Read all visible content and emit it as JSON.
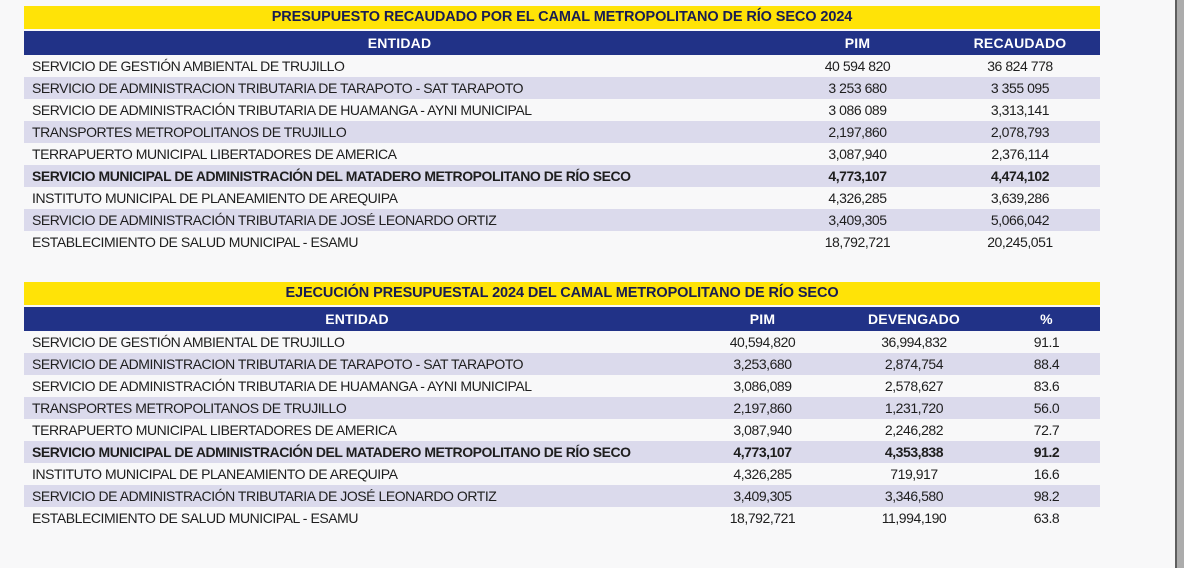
{
  "colors": {
    "title_bg": "#FFE307",
    "title_text": "#181C52",
    "header_bg": "#213287",
    "header_text": "#FFFFFF",
    "row_alt_bg": "#DBDAEC",
    "row_text": "#1E1E1E"
  },
  "tables": [
    {
      "title": "PRESUPUESTO RECAUDADO POR EL CAMAL METROPOLITANO DE RÍO SECO 2024",
      "columns": [
        "ENTIDAD",
        "PIM",
        "RECAUDADO"
      ],
      "rows": [
        {
          "cells": [
            "SERVICIO DE GESTIÓN AMBIENTAL DE TRUJILLO",
            "40 594 820",
            "36 824 778"
          ],
          "bold": false
        },
        {
          "cells": [
            "SERVICIO DE ADMINISTRACION TRIBUTARIA DE TARAPOTO - SAT TARAPOTO",
            "3 253 680",
            "3 355 095"
          ],
          "bold": false
        },
        {
          "cells": [
            "SERVICIO DE ADMINISTRACIÓN TRIBUTARIA DE HUAMANGA - AYNI MUNICIPAL",
            "3 086 089",
            "3,313,141"
          ],
          "bold": false
        },
        {
          "cells": [
            "TRANSPORTES METROPOLITANOS DE TRUJILLO",
            "2,197,860",
            "2,078,793"
          ],
          "bold": false
        },
        {
          "cells": [
            "TERRAPUERTO MUNICIPAL LIBERTADORES DE AMERICA",
            "3,087,940",
            "2,376,114"
          ],
          "bold": false
        },
        {
          "cells": [
            "SERVICIO MUNICIPAL DE ADMINISTRACIÓN DEL MATADERO METROPOLITANO DE RÍO SECO",
            "4,773,107",
            "4,474,102"
          ],
          "bold": true
        },
        {
          "cells": [
            "INSTITUTO MUNICIPAL DE PLANEAMIENTO DE AREQUIPA",
            "4,326,285",
            "3,639,286"
          ],
          "bold": false
        },
        {
          "cells": [
            "SERVICIO DE ADMINISTRACIÓN TRIBUTARIA DE JOSÉ LEONARDO ORTIZ",
            "3,409,305",
            "5,066,042"
          ],
          "bold": false
        },
        {
          "cells": [
            "ESTABLECIMIENTO DE SALUD MUNICIPAL - ESAMU",
            "18,792,721",
            "20,245,051"
          ],
          "bold": false
        }
      ]
    },
    {
      "title": "EJECUCIÓN PRESUPUESTAL 2024 DEL CAMAL METROPOLITANO DE RÍO SECO",
      "columns": [
        "ENTIDAD",
        "PIM",
        "DEVENGADO",
        "%"
      ],
      "rows": [
        {
          "cells": [
            "SERVICIO DE GESTIÓN AMBIENTAL DE TRUJILLO",
            "40,594,820",
            "36,994,832",
            "91.1"
          ],
          "bold": false
        },
        {
          "cells": [
            "SERVICIO DE ADMINISTRACION TRIBUTARIA DE TARAPOTO - SAT TARAPOTO",
            "3,253,680",
            "2,874,754",
            "88.4"
          ],
          "bold": false
        },
        {
          "cells": [
            "SERVICIO DE ADMINISTRACIÓN TRIBUTARIA DE HUAMANGA - AYNI MUNICIPAL",
            "3,086,089",
            "2,578,627",
            "83.6"
          ],
          "bold": false
        },
        {
          "cells": [
            "TRANSPORTES METROPOLITANOS DE TRUJILLO",
            "2,197,860",
            "1,231,720",
            "56.0"
          ],
          "bold": false
        },
        {
          "cells": [
            "TERRAPUERTO MUNICIPAL LIBERTADORES DE AMERICA",
            "3,087,940",
            "2,246,282",
            "72.7"
          ],
          "bold": false
        },
        {
          "cells": [
            "SERVICIO MUNICIPAL DE ADMINISTRACIÓN DEL MATADERO METROPOLITANO DE RÍO SECO",
            "4,773,107",
            "4,353,838",
            "91.2"
          ],
          "bold": true
        },
        {
          "cells": [
            "INSTITUTO MUNICIPAL DE PLANEAMIENTO DE AREQUIPA",
            "4,326,285",
            "719,917",
            "16.6"
          ],
          "bold": false
        },
        {
          "cells": [
            "SERVICIO DE ADMINISTRACIÓN TRIBUTARIA DE JOSÉ LEONARDO ORTIZ",
            "3,409,305",
            "3,346,580",
            "98.2"
          ],
          "bold": false
        },
        {
          "cells": [
            "ESTABLECIMIENTO DE SALUD MUNICIPAL - ESAMU",
            "18,792,721",
            "11,994,190",
            "63.8"
          ],
          "bold": false
        }
      ]
    }
  ]
}
